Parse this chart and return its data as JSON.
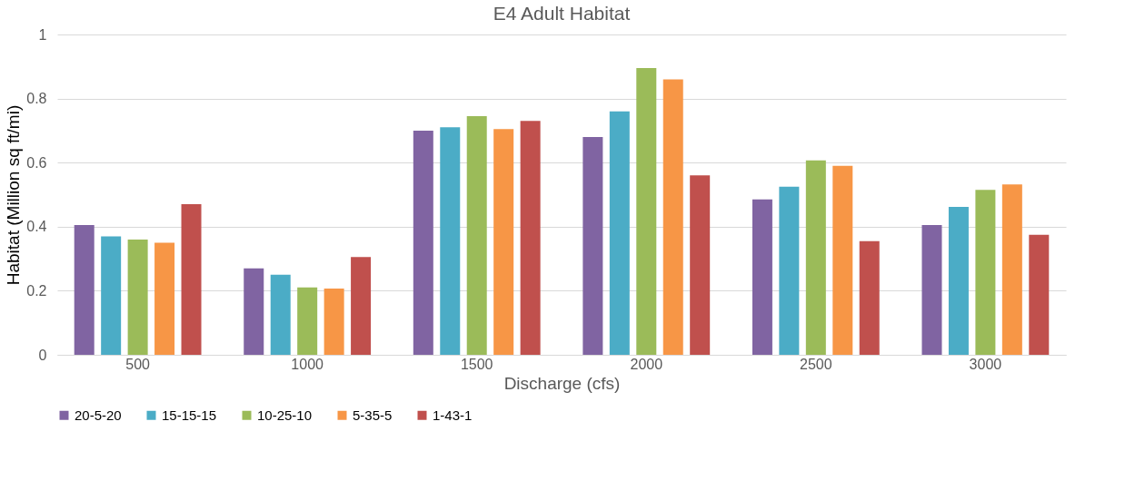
{
  "chart_data": {
    "type": "bar",
    "title": "E4 Adult Habitat",
    "xlabel": "Discharge (cfs)",
    "ylabel": "Habitat (Million sq ft/mi)",
    "categories": [
      "500",
      "1000",
      "1500",
      "2000",
      "2500",
      "3000"
    ],
    "series": [
      {
        "name": "20-5-20",
        "color": "#8064a2",
        "values": [
          0.405,
          0.27,
          0.7,
          0.68,
          0.485,
          0.405
        ]
      },
      {
        "name": "15-15-15",
        "color": "#4bacc6",
        "values": [
          0.37,
          0.25,
          0.71,
          0.76,
          0.525,
          0.462
        ]
      },
      {
        "name": "10-25-10",
        "color": "#9bbb59",
        "values": [
          0.36,
          0.21,
          0.745,
          0.895,
          0.607,
          0.515
        ]
      },
      {
        "name": "5-35-5",
        "color": "#f79646",
        "values": [
          0.35,
          0.207,
          0.705,
          0.86,
          0.59,
          0.532
        ]
      },
      {
        "name": "1-43-1",
        "color": "#c0504d",
        "values": [
          0.47,
          0.305,
          0.73,
          0.56,
          0.355,
          0.375
        ]
      }
    ],
    "ylim": [
      0,
      1
    ],
    "yticks": [
      0,
      0.2,
      0.4,
      0.6,
      0.8,
      1
    ],
    "grid": "y",
    "legend": "bottom"
  }
}
